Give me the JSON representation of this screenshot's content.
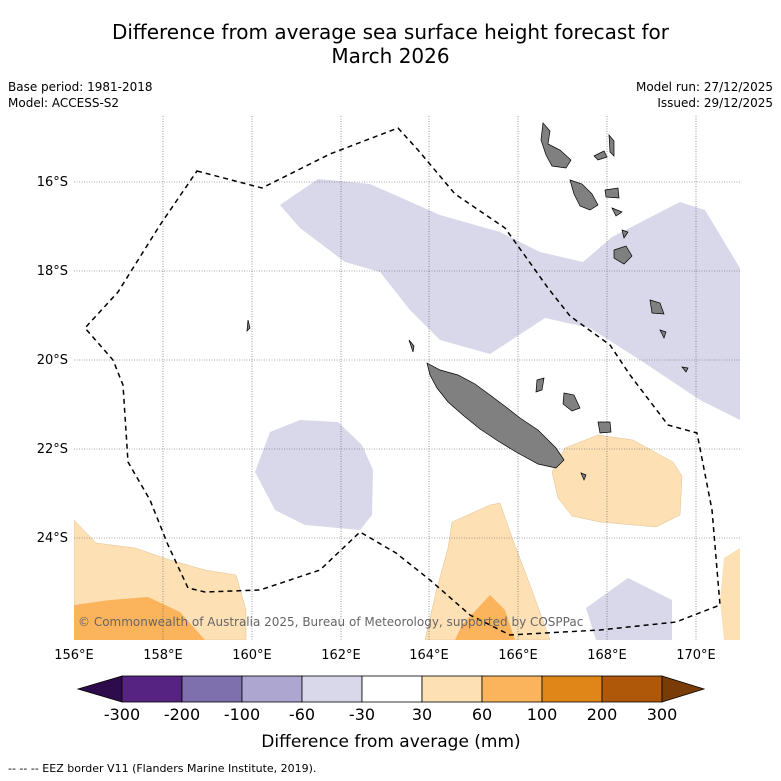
{
  "title_line1": "Difference from average sea surface height forecast for",
  "title_line2": "March 2026",
  "meta_left": {
    "base_period": "Base period: 1981-2018",
    "model": "Model: ACCESS-S2"
  },
  "meta_right": {
    "model_run": "Model run: 27/12/2025",
    "issued": "Issued: 29/12/2025"
  },
  "copyright": "© Commonwealth of Australia 2025, Bureau of Meteorology, supported by COSPPac",
  "footnote": "--  --  -- EEZ border V11 (Flanders Marine Institute, 2019).",
  "map": {
    "lon_labels": [
      "156°E",
      "158°E",
      "160°E",
      "162°E",
      "164°E",
      "166°E",
      "168°E",
      "170°E"
    ],
    "lat_labels": [
      "16°S",
      "18°S",
      "20°S",
      "22°S",
      "24°S"
    ],
    "lon_range": [
      156,
      171
    ],
    "lat_range": [
      -26.3,
      -14.2
    ]
  },
  "colorbar": {
    "title": "Difference from average (mm)",
    "tick_labels": [
      "-300",
      "-200",
      "-100",
      "-60",
      "-30",
      "30",
      "60",
      "100",
      "200",
      "300"
    ],
    "colors": [
      "#2e0b4a",
      "#562382",
      "#7e6fad",
      "#ada6d0",
      "#d9d8ea",
      "#ffffff",
      "#fde0b4",
      "#fbb45c",
      "#e08518",
      "#b05809",
      "#7a3c06"
    ]
  }
}
